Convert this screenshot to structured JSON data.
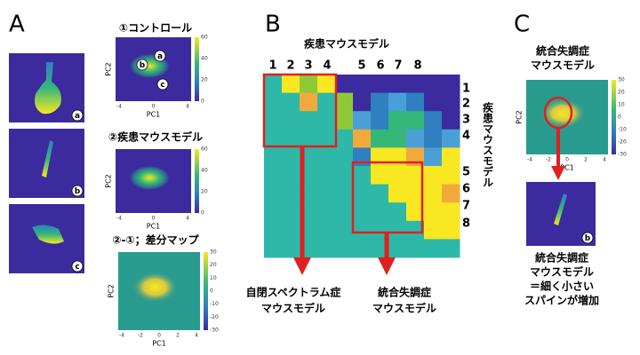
{
  "panel_a": {
    "letter": "A",
    "images": [
      {
        "label": "a"
      },
      {
        "label": "b"
      },
      {
        "label": "c"
      }
    ],
    "plots": [
      {
        "title": "①コントロール",
        "xlabel": "PC1",
        "ylabel": "PC2",
        "xticks": [
          "-4",
          "0",
          "4"
        ],
        "colorbar_ticks": [
          "60",
          "40",
          "20",
          "0"
        ],
        "points": [
          "b",
          "a",
          "c"
        ]
      },
      {
        "title": "②疾患マウスモデル",
        "xlabel": "PC1",
        "ylabel": "PC2",
        "xticks": [
          "-4",
          "0",
          "4"
        ],
        "colorbar_ticks": [
          "60",
          "40",
          "20",
          "0"
        ]
      },
      {
        "title": "②-①；差分マップ",
        "xlabel": "PC1",
        "ylabel": "PC2",
        "xticks": [
          "-4",
          "-2",
          "0",
          "2",
          "4"
        ],
        "colorbar_ticks": [
          "30",
          "20",
          "10",
          "0",
          "-10",
          "-20",
          "-30"
        ]
      }
    ]
  },
  "panel_b": {
    "letter": "B",
    "title": "疾患マウスモデル",
    "side_title": "疾患マウスモデル",
    "top_numbers": [
      "1",
      "2",
      "3",
      "4",
      "5",
      "6",
      "7",
      "8"
    ],
    "right_numbers": [
      "1",
      "2",
      "3",
      "4",
      "5",
      "6",
      "7",
      "8"
    ],
    "left_label": [
      "自閉スペクトラム症",
      "マウスモデル"
    ],
    "right_label": [
      "統合失調症",
      "マウスモデル"
    ]
  },
  "panel_c": {
    "letter": "C",
    "title": [
      "統合失調症",
      "マウスモデル"
    ],
    "plot": {
      "xlabel": "PC1",
      "ylabel": "PC2",
      "xticks": [
        "-4",
        "-2",
        "0",
        "2",
        "4"
      ],
      "colorbar_ticks": [
        "30",
        "20",
        "10",
        "0",
        "-10",
        "-20",
        "-30"
      ]
    },
    "image_label": "b",
    "caption": [
      "統合失調症",
      "マウスモデル",
      "＝細く小さい",
      "スパインが増加"
    ]
  }
}
